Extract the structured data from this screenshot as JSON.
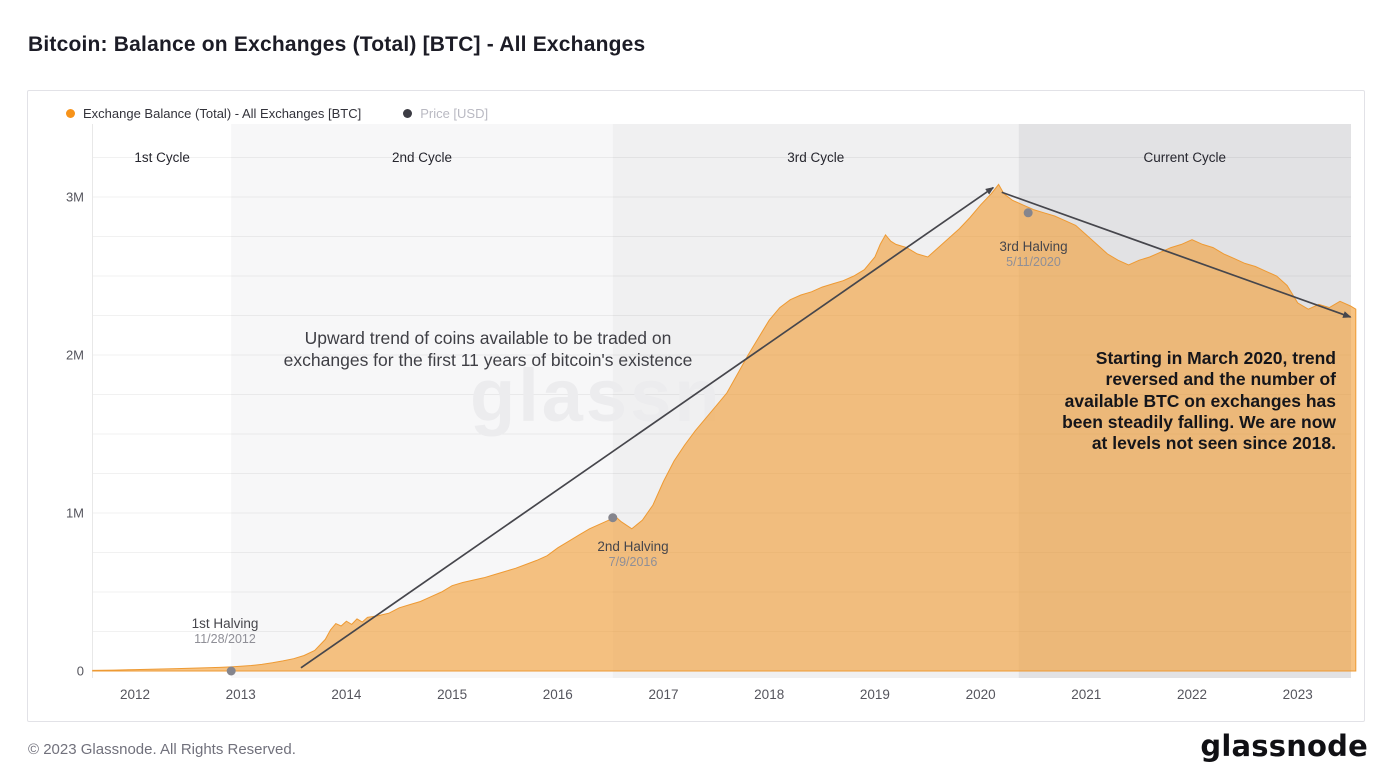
{
  "title": "Bitcoin: Balance on Exchanges (Total) [BTC] - All Exchanges",
  "watermark": "glassn",
  "legend": {
    "items": [
      {
        "label": "Exchange Balance (Total) - All Exchanges [BTC]",
        "color": "#f7931a",
        "text_color": "#33333b",
        "active": true
      },
      {
        "label": "Price [USD]",
        "color": "#3c3c44",
        "text_color": "#b9b9c2",
        "active": false
      }
    ]
  },
  "annotations": {
    "upward": "Upward trend of coins available to be traded on\nexchanges for the first 11 years of bitcoin's existence",
    "reversal": "Starting in March 2020, trend\nreversed and the number of\navailable BTC on exchanges has\nbeen steadily falling. We are now\nat levels not seen since 2018."
  },
  "footer": {
    "copyright": "© 2023 Glassnode. All Rights Reserved.",
    "logo": "glassnode"
  },
  "chart_data": {
    "type": "area",
    "title": "Bitcoin: Balance on Exchanges (Total) [BTC] - All Exchanges",
    "series_name": "Exchange Balance (Total) - All Exchanges [BTC]",
    "unit": "BTC, millions",
    "xlim": [
      2011.6,
      2023.55
    ],
    "ylim": [
      0,
      3.46
    ],
    "grid_step": 0.25,
    "area_color": "#f29e37",
    "x_ticks": [
      2012,
      2013,
      2014,
      2015,
      2016,
      2017,
      2018,
      2019,
      2020,
      2021,
      2022,
      2023
    ],
    "y_ticks": [
      {
        "v": 0,
        "label": "0"
      },
      {
        "v": 1,
        "label": "1M"
      },
      {
        "v": 2,
        "label": "2M"
      },
      {
        "v": 3,
        "label": "3M"
      }
    ],
    "cycles": [
      {
        "label": "1st Cycle",
        "start": 2011.6,
        "end": 2012.91,
        "color": "#ffffff"
      },
      {
        "label": "2nd Cycle",
        "start": 2012.91,
        "end": 2016.52,
        "color": "#f7f7f8"
      },
      {
        "label": "3rd Cycle",
        "start": 2016.52,
        "end": 2020.36,
        "color": "#f0f0f1"
      },
      {
        "label": "Current Cycle",
        "start": 2020.36,
        "end": 2023.55,
        "color": "#e2e2e4"
      }
    ],
    "halvings": [
      {
        "label": "1st Halving",
        "date": "11/28/2012",
        "x": 2012.91,
        "y": 0.0
      },
      {
        "label": "2nd Halving",
        "date": "7/9/2016",
        "x": 2016.52,
        "y": 0.97
      },
      {
        "label": "3rd Halving",
        "date": "5/11/2020",
        "x": 2020.45,
        "y": 2.9
      }
    ],
    "trend_lines": [
      {
        "x1": 2013.57,
        "y1": 0.02,
        "x2": 2020.12,
        "y2": 3.06
      },
      {
        "x1": 2020.2,
        "y1": 3.03,
        "x2": 2023.5,
        "y2": 2.24
      }
    ],
    "points": [
      [
        2011.6,
        0.004
      ],
      [
        2011.8,
        0.006
      ],
      [
        2012.0,
        0.009
      ],
      [
        2012.2,
        0.012
      ],
      [
        2012.4,
        0.015
      ],
      [
        2012.6,
        0.019
      ],
      [
        2012.8,
        0.023
      ],
      [
        2012.91,
        0.026
      ],
      [
        2013.0,
        0.03
      ],
      [
        2013.1,
        0.035
      ],
      [
        2013.2,
        0.042
      ],
      [
        2013.3,
        0.052
      ],
      [
        2013.4,
        0.064
      ],
      [
        2013.5,
        0.078
      ],
      [
        2013.6,
        0.098
      ],
      [
        2013.7,
        0.13
      ],
      [
        2013.8,
        0.2
      ],
      [
        2013.85,
        0.26
      ],
      [
        2013.9,
        0.3
      ],
      [
        2013.95,
        0.285
      ],
      [
        2014.0,
        0.315
      ],
      [
        2014.05,
        0.295
      ],
      [
        2014.1,
        0.33
      ],
      [
        2014.15,
        0.31
      ],
      [
        2014.2,
        0.34
      ],
      [
        2014.3,
        0.35
      ],
      [
        2014.4,
        0.365
      ],
      [
        2014.5,
        0.4
      ],
      [
        2014.6,
        0.42
      ],
      [
        2014.7,
        0.44
      ],
      [
        2014.8,
        0.47
      ],
      [
        2014.9,
        0.5
      ],
      [
        2015.0,
        0.54
      ],
      [
        2015.1,
        0.56
      ],
      [
        2015.2,
        0.575
      ],
      [
        2015.3,
        0.59
      ],
      [
        2015.4,
        0.61
      ],
      [
        2015.5,
        0.63
      ],
      [
        2015.6,
        0.65
      ],
      [
        2015.7,
        0.675
      ],
      [
        2015.8,
        0.7
      ],
      [
        2015.9,
        0.73
      ],
      [
        2016.0,
        0.78
      ],
      [
        2016.1,
        0.82
      ],
      [
        2016.2,
        0.86
      ],
      [
        2016.3,
        0.9
      ],
      [
        2016.4,
        0.93
      ],
      [
        2016.5,
        0.96
      ],
      [
        2016.55,
        0.975
      ],
      [
        2016.6,
        0.945
      ],
      [
        2016.7,
        0.9
      ],
      [
        2016.8,
        0.955
      ],
      [
        2016.9,
        1.05
      ],
      [
        2017.0,
        1.2
      ],
      [
        2017.1,
        1.33
      ],
      [
        2017.2,
        1.43
      ],
      [
        2017.3,
        1.52
      ],
      [
        2017.4,
        1.6
      ],
      [
        2017.5,
        1.68
      ],
      [
        2017.6,
        1.76
      ],
      [
        2017.7,
        1.88
      ],
      [
        2017.8,
        2.0
      ],
      [
        2017.9,
        2.11
      ],
      [
        2018.0,
        2.22
      ],
      [
        2018.1,
        2.3
      ],
      [
        2018.2,
        2.35
      ],
      [
        2018.3,
        2.38
      ],
      [
        2018.4,
        2.4
      ],
      [
        2018.5,
        2.43
      ],
      [
        2018.6,
        2.45
      ],
      [
        2018.7,
        2.47
      ],
      [
        2018.8,
        2.5
      ],
      [
        2018.9,
        2.54
      ],
      [
        2019.0,
        2.62
      ],
      [
        2019.05,
        2.7
      ],
      [
        2019.1,
        2.76
      ],
      [
        2019.15,
        2.72
      ],
      [
        2019.2,
        2.7
      ],
      [
        2019.3,
        2.68
      ],
      [
        2019.4,
        2.64
      ],
      [
        2019.5,
        2.62
      ],
      [
        2019.6,
        2.68
      ],
      [
        2019.7,
        2.74
      ],
      [
        2019.8,
        2.8
      ],
      [
        2019.9,
        2.87
      ],
      [
        2020.0,
        2.95
      ],
      [
        2020.1,
        3.02
      ],
      [
        2020.17,
        3.08
      ],
      [
        2020.22,
        3.02
      ],
      [
        2020.3,
        2.98
      ],
      [
        2020.4,
        2.95
      ],
      [
        2020.5,
        2.92
      ],
      [
        2020.6,
        2.9
      ],
      [
        2020.7,
        2.88
      ],
      [
        2020.8,
        2.85
      ],
      [
        2020.9,
        2.82
      ],
      [
        2021.0,
        2.76
      ],
      [
        2021.1,
        2.7
      ],
      [
        2021.2,
        2.64
      ],
      [
        2021.3,
        2.6
      ],
      [
        2021.4,
        2.57
      ],
      [
        2021.5,
        2.6
      ],
      [
        2021.6,
        2.62
      ],
      [
        2021.7,
        2.65
      ],
      [
        2021.8,
        2.68
      ],
      [
        2021.9,
        2.7
      ],
      [
        2022.0,
        2.73
      ],
      [
        2022.1,
        2.7
      ],
      [
        2022.2,
        2.68
      ],
      [
        2022.3,
        2.64
      ],
      [
        2022.4,
        2.61
      ],
      [
        2022.5,
        2.58
      ],
      [
        2022.6,
        2.56
      ],
      [
        2022.7,
        2.53
      ],
      [
        2022.8,
        2.5
      ],
      [
        2022.9,
        2.44
      ],
      [
        2023.0,
        2.33
      ],
      [
        2023.1,
        2.29
      ],
      [
        2023.2,
        2.32
      ],
      [
        2023.3,
        2.3
      ],
      [
        2023.4,
        2.34
      ],
      [
        2023.5,
        2.31
      ],
      [
        2023.55,
        2.29
      ]
    ]
  }
}
